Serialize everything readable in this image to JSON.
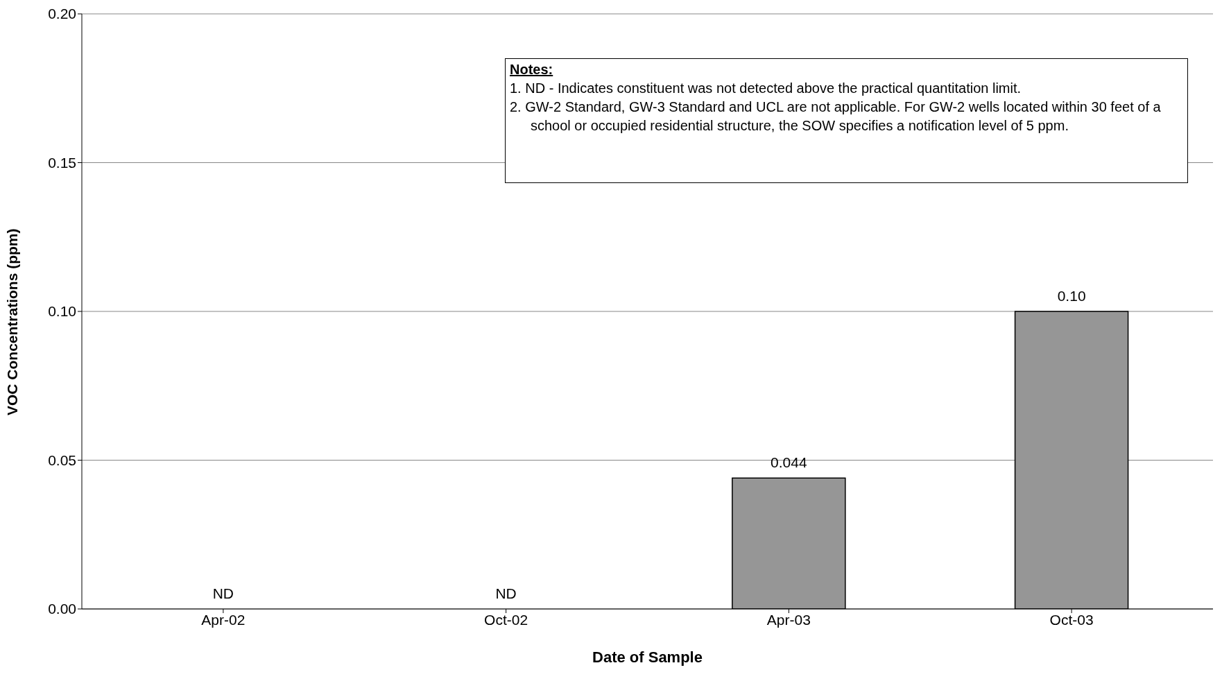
{
  "chart_data": {
    "type": "bar",
    "xlabel": "Date of Sample",
    "ylabel": "VOC Concentrations (ppm)",
    "categories": [
      "Apr-02",
      "Oct-02",
      "Apr-03",
      "Oct-03"
    ],
    "values": [
      null,
      null,
      0.044,
      0.1
    ],
    "value_labels": [
      "ND",
      "ND",
      "0.044",
      "0.10"
    ],
    "color": "#969696",
    "ylim": [
      0,
      0.2
    ],
    "yticks": [
      {
        "value": 0,
        "label": "0.00"
      },
      {
        "value": 0.05,
        "label": "0.05"
      },
      {
        "value": 0.1,
        "label": "0.10"
      },
      {
        "value": 0.15,
        "label": "0.15"
      },
      {
        "value": 0.2,
        "label": "0.20"
      }
    ],
    "grid": "y",
    "annotations": [
      "Notes:",
      "1.  ND - Indicates constituent was not detected above the practical quantitation limit.",
      "2.  GW-2 Standard, GW-3 Standard and UCL are not applicable. For GW-2 wells located within 30 feet of a school or occupied residential structure, the SOW specifies a notification level of 5 ppm."
    ]
  }
}
